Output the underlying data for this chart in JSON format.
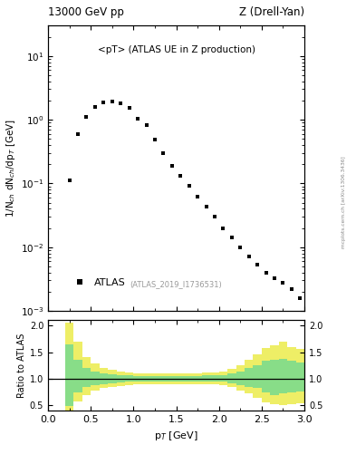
{
  "title_left": "13000 GeV pp",
  "title_right": "Z (Drell-Yan)",
  "annotation": "<pT> (ATLAS UE in Z production)",
  "ref_label": "(ATLAS_2019_I1736531)",
  "ylabel_main": "1/N$_{ch}$ dN$_{ch}$/dp$_T$ [GeV]",
  "ylabel_ratio": "Ratio to ATLAS",
  "xlabel": "p$_T$ [GeV]",
  "right_label": "mcplots.cern.ch [arXiv:1306.3436]",
  "legend_label": "ATLAS",
  "data_x": [
    0.25,
    0.35,
    0.45,
    0.55,
    0.65,
    0.75,
    0.85,
    0.95,
    1.05,
    1.15,
    1.25,
    1.35,
    1.45,
    1.55,
    1.65,
    1.75,
    1.85,
    1.95,
    2.05,
    2.15,
    2.25,
    2.35,
    2.45,
    2.55,
    2.65,
    2.75,
    2.85,
    2.95
  ],
  "data_y": [
    0.11,
    0.6,
    1.1,
    1.6,
    1.85,
    1.9,
    1.8,
    1.55,
    1.05,
    0.82,
    0.48,
    0.3,
    0.19,
    0.13,
    0.093,
    0.062,
    0.043,
    0.03,
    0.02,
    0.014,
    0.01,
    0.0072,
    0.0053,
    0.004,
    0.0033,
    0.0028,
    0.0022,
    0.0016
  ],
  "xlim": [
    0.0,
    3.0
  ],
  "ylim_main": [
    0.001,
    30
  ],
  "ylim_ratio": [
    0.4,
    2.1
  ],
  "ratio_yticks": [
    0.5,
    1.0,
    1.5,
    2.0
  ],
  "green_color": "#88dd88",
  "yellow_color": "#eeee66",
  "ratio_bins_x": [
    0.2,
    0.3,
    0.4,
    0.5,
    0.6,
    0.7,
    0.8,
    0.9,
    1.0,
    1.1,
    1.2,
    1.3,
    1.4,
    1.5,
    1.6,
    1.7,
    1.8,
    1.9,
    2.0,
    2.1,
    2.2,
    2.3,
    2.4,
    2.5,
    2.6,
    2.7,
    2.8,
    2.9,
    3.0
  ],
  "ratio_green_lo": [
    0.48,
    0.74,
    0.84,
    0.88,
    0.9,
    0.92,
    0.93,
    0.94,
    0.95,
    0.95,
    0.95,
    0.95,
    0.95,
    0.95,
    0.95,
    0.95,
    0.95,
    0.95,
    0.94,
    0.92,
    0.88,
    0.84,
    0.82,
    0.74,
    0.7,
    0.72,
    0.74,
    0.76
  ],
  "ratio_green_hi": [
    1.65,
    1.35,
    1.2,
    1.14,
    1.1,
    1.08,
    1.07,
    1.06,
    1.05,
    1.05,
    1.05,
    1.05,
    1.05,
    1.05,
    1.05,
    1.05,
    1.06,
    1.06,
    1.07,
    1.1,
    1.14,
    1.2,
    1.26,
    1.34,
    1.36,
    1.38,
    1.34,
    1.3
  ],
  "ratio_yellow_lo": [
    0.4,
    0.58,
    0.7,
    0.78,
    0.82,
    0.84,
    0.86,
    0.88,
    0.9,
    0.9,
    0.9,
    0.9,
    0.9,
    0.9,
    0.9,
    0.9,
    0.9,
    0.9,
    0.88,
    0.84,
    0.78,
    0.72,
    0.64,
    0.56,
    0.52,
    0.5,
    0.52,
    0.54
  ],
  "ratio_yellow_hi": [
    2.05,
    1.7,
    1.4,
    1.28,
    1.2,
    1.16,
    1.14,
    1.12,
    1.1,
    1.1,
    1.1,
    1.1,
    1.1,
    1.1,
    1.1,
    1.1,
    1.12,
    1.12,
    1.14,
    1.18,
    1.26,
    1.36,
    1.46,
    1.58,
    1.62,
    1.7,
    1.6,
    1.56
  ]
}
